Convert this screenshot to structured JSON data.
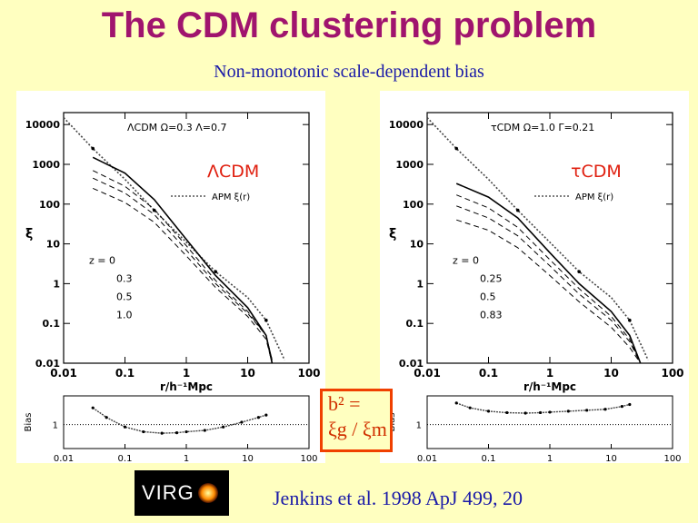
{
  "title": "The CDM clustering problem",
  "subtitle": "Non-monotonic scale-dependent bias",
  "bias_box": {
    "line1": "b² =",
    "line2": "ξg / ξm"
  },
  "logo": {
    "text": "VIRG"
  },
  "citation": "Jenkins et al. 1998 ApJ 499, 20",
  "colors": {
    "title": "#a0146e",
    "subtitle": "#1a1aa8",
    "background": "#ffffc0",
    "highlight": "#f04000"
  },
  "chart_data": [
    {
      "type": "line",
      "panel": "left",
      "overlay_label": "ΛCDM",
      "model_label": "ΛCDM Ω=0.3 Λ=0.7",
      "legend": "APM ξ(r)",
      "xlabel": "r/h⁻¹Mpc",
      "ylabel": "ξ",
      "xscale": "log",
      "yscale": "log",
      "xlim": [
        0.01,
        100
      ],
      "ylim": [
        0.01,
        20000
      ],
      "x_ticks": [
        "0.01",
        "0.1",
        "1",
        "10",
        "100"
      ],
      "y_ticks": [
        "0.01",
        "0.1",
        "1",
        "10",
        "100",
        "1000",
        "10000"
      ],
      "redshift_title": "z = 0",
      "redshift_labels": [
        "0.3",
        "0.5",
        "1.0"
      ],
      "series": [
        {
          "name": "APM ξ(r)",
          "style": "data",
          "x": [
            0.01,
            0.03,
            0.1,
            0.3,
            1,
            3,
            10,
            20,
            40
          ],
          "y": [
            15000,
            2500,
            420,
            70,
            11,
            2,
            0.45,
            0.12,
            0.012
          ]
        },
        {
          "name": "z = 0",
          "style": "solid",
          "x": [
            0.03,
            0.1,
            0.3,
            1,
            3,
            10,
            20,
            25
          ],
          "y": [
            1500,
            600,
            130,
            13,
            1.6,
            0.25,
            0.05,
            0.01
          ]
        },
        {
          "name": "0.3",
          "style": "dashed",
          "x": [
            0.03,
            0.1,
            0.3,
            1,
            3,
            10,
            20,
            25
          ],
          "y": [
            700,
            280,
            75,
            9,
            1.2,
            0.2,
            0.05,
            0.012
          ]
        },
        {
          "name": "0.5",
          "style": "dashed",
          "x": [
            0.03,
            0.1,
            0.3,
            1,
            3,
            10,
            20,
            25
          ],
          "y": [
            450,
            190,
            55,
            7,
            1,
            0.18,
            0.05,
            0.012
          ]
        },
        {
          "name": "1.0",
          "style": "dashed",
          "x": [
            0.03,
            0.1,
            0.3,
            1,
            3,
            10,
            20,
            25
          ],
          "y": [
            250,
            110,
            35,
            5,
            0.8,
            0.15,
            0.04,
            0.01
          ]
        }
      ],
      "bias": {
        "ylabel": "Bias",
        "ylim": [
          0.5,
          1.6
        ],
        "tick_label": "1",
        "x": [
          0.03,
          0.05,
          0.1,
          0.2,
          0.4,
          0.7,
          1,
          2,
          4,
          8,
          15,
          20
        ],
        "y": [
          1.35,
          1.15,
          0.95,
          0.85,
          0.82,
          0.83,
          0.85,
          0.88,
          0.95,
          1.05,
          1.15,
          1.2
        ]
      }
    },
    {
      "type": "line",
      "panel": "right",
      "overlay_label": "τCDM",
      "model_label": "τCDM Ω=1.0 Γ=0.21",
      "legend": "APM ξ(r)",
      "xlabel": "r/h⁻¹Mpc",
      "ylabel": "ξ",
      "xscale": "log",
      "yscale": "log",
      "xlim": [
        0.01,
        100
      ],
      "ylim": [
        0.01,
        20000
      ],
      "x_ticks": [
        "0.01",
        "0.1",
        "1",
        "10",
        "100"
      ],
      "y_ticks": [
        "0.01",
        "0.1",
        "1",
        "10",
        "100",
        "1000",
        "10000"
      ],
      "redshift_title": "z = 0",
      "redshift_labels": [
        "0.25",
        "0.5",
        "0.83"
      ],
      "series": [
        {
          "name": "APM ξ(r)",
          "style": "data",
          "x": [
            0.01,
            0.03,
            0.1,
            0.3,
            1,
            3,
            10,
            20,
            40
          ],
          "y": [
            15000,
            2500,
            420,
            70,
            11,
            2,
            0.45,
            0.12,
            0.012
          ]
        },
        {
          "name": "z = 0",
          "style": "solid",
          "x": [
            0.03,
            0.1,
            0.3,
            1,
            3,
            10,
            20,
            30
          ],
          "y": [
            330,
            150,
            45,
            6,
            1,
            0.2,
            0.05,
            0.01
          ]
        },
        {
          "name": "0.25",
          "style": "dashed",
          "x": [
            0.03,
            0.1,
            0.3,
            1,
            3,
            10,
            20,
            30
          ],
          "y": [
            170,
            80,
            26,
            4,
            0.75,
            0.15,
            0.04,
            0.01
          ]
        },
        {
          "name": "0.5",
          "style": "dashed",
          "x": [
            0.03,
            0.1,
            0.3,
            1,
            3,
            10,
            20,
            30
          ],
          "y": [
            90,
            45,
            16,
            2.8,
            0.55,
            0.12,
            0.035,
            0.01
          ]
        },
        {
          "name": "0.83",
          "style": "dashed",
          "x": [
            0.03,
            0.1,
            0.3,
            1,
            3,
            10,
            20,
            30
          ],
          "y": [
            40,
            22,
            8,
            1.6,
            0.35,
            0.08,
            0.025,
            0.01
          ]
        }
      ],
      "bias": {
        "ylabel": "Bias",
        "ylim": [
          0.5,
          1.6
        ],
        "tick_label": "1",
        "x": [
          0.03,
          0.05,
          0.1,
          0.2,
          0.4,
          0.7,
          1,
          2,
          4,
          8,
          15,
          20
        ],
        "y": [
          1.45,
          1.35,
          1.28,
          1.25,
          1.24,
          1.25,
          1.26,
          1.28,
          1.3,
          1.32,
          1.38,
          1.42
        ]
      }
    }
  ]
}
